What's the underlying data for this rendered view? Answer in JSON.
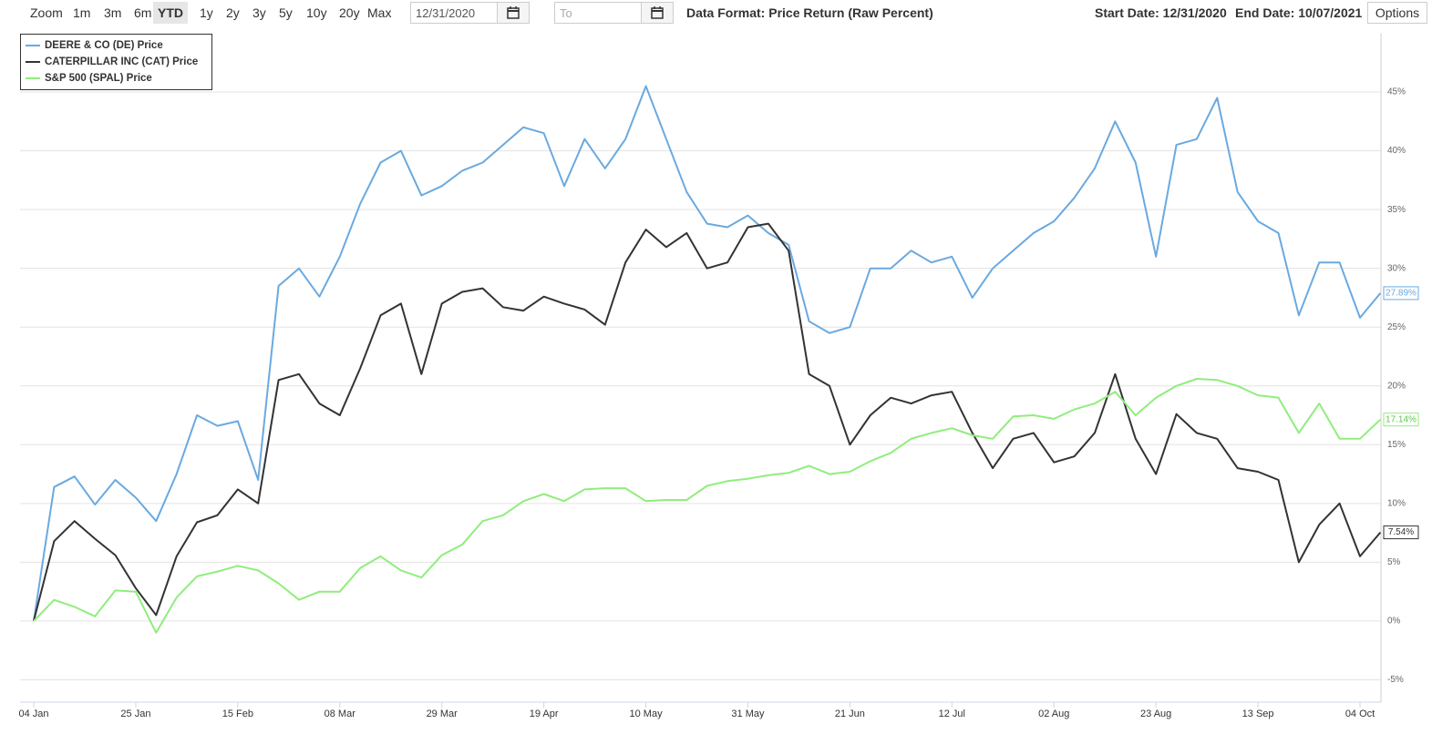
{
  "toolbar": {
    "zoom": "Zoom",
    "buttons": [
      "1m",
      "3m",
      "6m",
      "YTD",
      "1y",
      "2y",
      "3y",
      "5y",
      "10y",
      "20y",
      "Max"
    ],
    "active": "YTD",
    "from_date": "12/31/2020",
    "to_placeholder": "To",
    "data_format": "Data Format: Price Return (Raw Percent)",
    "start_date": "Start Date: 12/31/2020",
    "end_date": "End Date: 10/07/2021",
    "options": "Options"
  },
  "chart_data": {
    "type": "line",
    "categories": [
      "04 Jan",
      null,
      null,
      null,
      null,
      "25 Jan",
      null,
      null,
      null,
      null,
      "15 Feb",
      null,
      null,
      null,
      null,
      "08 Mar",
      null,
      null,
      null,
      null,
      "29 Mar",
      null,
      null,
      null,
      null,
      "19 Apr",
      null,
      null,
      null,
      null,
      "10 May",
      null,
      null,
      null,
      null,
      "31 May",
      null,
      null,
      null,
      null,
      "21 Jun",
      null,
      null,
      null,
      null,
      "12 Jul",
      null,
      null,
      null,
      null,
      "02 Aug",
      null,
      null,
      null,
      null,
      "23 Aug",
      null,
      null,
      null,
      null,
      "13 Sep",
      null,
      null,
      null,
      null,
      "04 Oct",
      null
    ],
    "series": [
      {
        "name": "DEERE & CO (DE) Price",
        "color": "#6aa9e0",
        "end_label": "27.89%",
        "values": [
          0,
          11.4,
          12.3,
          9.9,
          12,
          10.5,
          8.5,
          12.5,
          17.5,
          16.6,
          17,
          12,
          28.5,
          30,
          27.6,
          31,
          35.5,
          39,
          40,
          36.2,
          37,
          38.3,
          39,
          40.5,
          42,
          41.5,
          37,
          41,
          38.5,
          41,
          45.5,
          41,
          36.5,
          33.8,
          33.5,
          34.5,
          33,
          32,
          25.5,
          24.5,
          25,
          30,
          30,
          31.5,
          30.5,
          31,
          27.5,
          30,
          31.5,
          33,
          34,
          36,
          38.5,
          42.5,
          39,
          31,
          40.5,
          41,
          44.5,
          36.5,
          34,
          33,
          26,
          30.5,
          30.5,
          25.8,
          27.89
        ]
      },
      {
        "name": "CATERPILLAR INC (CAT) Price",
        "color": "#333333",
        "end_label": "7.54%",
        "values": [
          0,
          6.8,
          8.5,
          7,
          5.6,
          2.8,
          0.5,
          5.5,
          8.4,
          9,
          11.2,
          10,
          20.5,
          21,
          18.5,
          17.5,
          21.5,
          26,
          27,
          21,
          27,
          28,
          28.3,
          26.7,
          26.4,
          27.6,
          27,
          26.5,
          25.2,
          30.5,
          33.3,
          31.8,
          33,
          30,
          30.5,
          33.5,
          33.8,
          31.5,
          21,
          20,
          15,
          17.5,
          19,
          18.5,
          19.2,
          19.5,
          16,
          13,
          15.5,
          16,
          13.5,
          14,
          16,
          21,
          15.5,
          12.5,
          17.6,
          16,
          15.5,
          13,
          12.7,
          12,
          5,
          8.2,
          10,
          5.5,
          7.54
        ]
      },
      {
        "name": "S&P 500 (SPAL) Price",
        "color": "#90ed7d",
        "end_label": "17.14%",
        "values": [
          0,
          1.8,
          1.2,
          0.4,
          2.6,
          2.5,
          -1,
          2,
          3.8,
          4.2,
          4.7,
          4.3,
          3.2,
          1.8,
          2.5,
          2.5,
          4.5,
          5.5,
          4.3,
          3.7,
          5.6,
          6.5,
          8.5,
          9,
          10.2,
          10.8,
          10.2,
          11.2,
          11.3,
          11.3,
          10.2,
          10.3,
          10.3,
          11.5,
          11.9,
          12.1,
          12.4,
          12.6,
          13.2,
          12.5,
          12.7,
          13.6,
          14.3,
          15.5,
          16,
          16.4,
          15.8,
          15.5,
          17.4,
          17.5,
          17.2,
          18,
          18.5,
          19.5,
          17.5,
          19,
          20,
          20.6,
          20.5,
          20,
          19.2,
          19,
          16,
          18.5,
          15.5,
          15.5,
          17.14
        ]
      }
    ],
    "ylim": [
      -6.9,
      50
    ],
    "yticks": [
      {
        "value": -5,
        "label": "-5%"
      },
      {
        "value": 0,
        "label": "0%"
      },
      {
        "value": 5,
        "label": "5%"
      },
      {
        "value": 10,
        "label": "10%"
      },
      {
        "value": 15,
        "label": "15%"
      },
      {
        "value": 20,
        "label": "20%"
      },
      {
        "value": 25,
        "label": "25%"
      },
      {
        "value": 30,
        "label": "30%"
      },
      {
        "value": 35,
        "label": "35%"
      },
      {
        "value": 40,
        "label": "40%"
      },
      {
        "value": 45,
        "label": "45%"
      }
    ],
    "grid": true,
    "legend": "top-left"
  }
}
